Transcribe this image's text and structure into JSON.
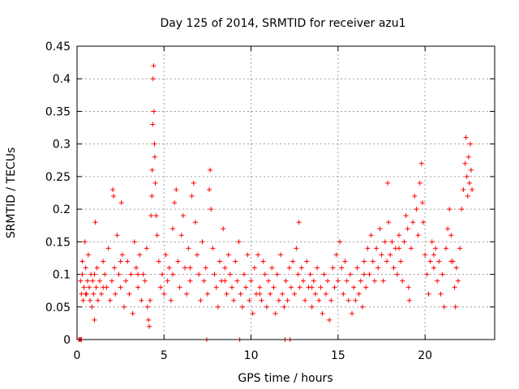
{
  "chart_data": {
    "type": "scatter",
    "title": "Day 125 of 2014, SRMTID for receiver azu1",
    "xlabel": "GPS time / hours",
    "ylabel": "SRMTID / TECUs",
    "xlim": [
      0,
      24
    ],
    "ylim": [
      0,
      0.45
    ],
    "xticks": [
      0,
      5,
      10,
      15,
      20
    ],
    "xtick_labels": [
      "0",
      "5",
      "10",
      "15",
      "20"
    ],
    "yticks": [
      0,
      0.05,
      0.1,
      0.15,
      0.2,
      0.25,
      0.3,
      0.35,
      0.4,
      0.45
    ],
    "ytick_labels": [
      "0",
      "0.05",
      "0.1",
      "0.15",
      "0.2",
      "0.25",
      "0.3",
      "0.35",
      "0.4",
      "0.45"
    ],
    "grid": true,
    "marker": "+",
    "color": "#ff0000",
    "series": [
      {
        "name": "SRMTID",
        "points": [
          [
            0.1,
            0.0
          ],
          [
            0.15,
            0.0
          ],
          [
            0.2,
            0.0
          ],
          [
            0.25,
            0.0
          ],
          [
            0.2,
            0.09
          ],
          [
            0.25,
            0.07
          ],
          [
            0.3,
            0.1
          ],
          [
            0.3,
            0.12
          ],
          [
            0.35,
            0.06
          ],
          [
            0.4,
            0.08
          ],
          [
            0.45,
            0.15
          ],
          [
            0.5,
            0.11
          ],
          [
            0.55,
            0.07
          ],
          [
            0.6,
            0.09
          ],
          [
            0.65,
            0.13
          ],
          [
            0.7,
            0.08
          ],
          [
            0.75,
            0.06
          ],
          [
            0.8,
            0.1
          ],
          [
            0.85,
            0.05
          ],
          [
            0.9,
            0.09
          ],
          [
            0.95,
            0.07
          ],
          [
            1.0,
            0.03
          ],
          [
            1.05,
            0.18
          ],
          [
            1.1,
            0.08
          ],
          [
            1.15,
            0.11
          ],
          [
            1.2,
            0.06
          ],
          [
            1.3,
            0.09
          ],
          [
            1.4,
            0.07
          ],
          [
            1.5,
            0.12
          ],
          [
            1.6,
            0.1
          ],
          [
            1.7,
            0.08
          ],
          [
            1.8,
            0.14
          ],
          [
            1.9,
            0.06
          ],
          [
            2.0,
            0.09
          ],
          [
            2.05,
            0.23
          ],
          [
            2.1,
            0.22
          ],
          [
            2.15,
            0.11
          ],
          [
            2.2,
            0.07
          ],
          [
            2.3,
            0.16
          ],
          [
            2.4,
            0.1
          ],
          [
            2.5,
            0.08
          ],
          [
            2.55,
            0.21
          ],
          [
            2.6,
            0.13
          ],
          [
            2.7,
            0.05
          ],
          [
            2.8,
            0.09
          ],
          [
            2.9,
            0.12
          ],
          [
            3.0,
            0.07
          ],
          [
            3.1,
            0.1
          ],
          [
            3.2,
            0.04
          ],
          [
            3.3,
            0.15
          ],
          [
            3.4,
            0.11
          ],
          [
            3.5,
            0.08
          ],
          [
            3.6,
            0.13
          ],
          [
            3.7,
            0.06
          ],
          [
            3.8,
            0.1
          ],
          [
            3.9,
            0.09
          ],
          [
            4.0,
            0.14
          ],
          [
            4.05,
            0.05
          ],
          [
            4.1,
            0.03
          ],
          [
            4.15,
            0.02
          ],
          [
            4.2,
            0.06
          ],
          [
            4.25,
            0.19
          ],
          [
            4.3,
            0.22
          ],
          [
            4.32,
            0.26
          ],
          [
            4.35,
            0.33
          ],
          [
            4.37,
            0.4
          ],
          [
            4.4,
            0.42
          ],
          [
            4.42,
            0.35
          ],
          [
            4.45,
            0.3
          ],
          [
            4.47,
            0.28
          ],
          [
            4.5,
            0.24
          ],
          [
            4.55,
            0.19
          ],
          [
            4.6,
            0.16
          ],
          [
            4.7,
            0.12
          ],
          [
            4.8,
            0.08
          ],
          [
            4.9,
            0.1
          ],
          [
            5.0,
            0.07
          ],
          [
            5.1,
            0.13
          ],
          [
            5.2,
            0.09
          ],
          [
            5.3,
            0.11
          ],
          [
            5.4,
            0.06
          ],
          [
            5.5,
            0.17
          ],
          [
            5.6,
            0.21
          ],
          [
            5.7,
            0.23
          ],
          [
            5.8,
            0.12
          ],
          [
            5.9,
            0.08
          ],
          [
            6.0,
            0.16
          ],
          [
            6.1,
            0.19
          ],
          [
            6.2,
            0.11
          ],
          [
            6.3,
            0.07
          ],
          [
            6.4,
            0.14
          ],
          [
            6.5,
            0.09
          ],
          [
            6.6,
            0.22
          ],
          [
            6.7,
            0.24
          ],
          [
            6.8,
            0.18
          ],
          [
            6.9,
            0.13
          ],
          [
            7.0,
            0.1
          ],
          [
            7.1,
            0.06
          ],
          [
            7.2,
            0.15
          ],
          [
            7.3,
            0.09
          ],
          [
            7.4,
            0.11
          ],
          [
            7.45,
            0.0
          ],
          [
            7.5,
            0.07
          ],
          [
            7.6,
            0.23
          ],
          [
            7.65,
            0.26
          ],
          [
            7.7,
            0.2
          ],
          [
            7.8,
            0.14
          ],
          [
            7.9,
            0.1
          ],
          [
            8.0,
            0.08
          ],
          [
            8.1,
            0.05
          ],
          [
            8.2,
            0.12
          ],
          [
            8.3,
            0.09
          ],
          [
            8.4,
            0.17
          ],
          [
            8.5,
            0.11
          ],
          [
            8.6,
            0.07
          ],
          [
            8.7,
            0.13
          ],
          [
            8.8,
            0.1
          ],
          [
            8.9,
            0.08
          ],
          [
            9.0,
            0.06
          ],
          [
            9.1,
            0.12
          ],
          [
            9.2,
            0.09
          ],
          [
            9.3,
            0.15
          ],
          [
            9.35,
            0.0
          ],
          [
            9.4,
            0.07
          ],
          [
            9.5,
            0.05
          ],
          [
            9.6,
            0.1
          ],
          [
            9.7,
            0.08
          ],
          [
            9.8,
            0.13
          ],
          [
            9.9,
            0.06
          ],
          [
            10.0,
            0.09
          ],
          [
            10.1,
            0.04
          ],
          [
            10.2,
            0.11
          ],
          [
            10.3,
            0.07
          ],
          [
            10.4,
            0.13
          ],
          [
            10.5,
            0.08
          ],
          [
            10.6,
            0.06
          ],
          [
            10.7,
            0.12
          ],
          [
            10.8,
            0.1
          ],
          [
            10.9,
            0.05
          ],
          [
            11.0,
            0.09
          ],
          [
            11.1,
            0.07
          ],
          [
            11.2,
            0.11
          ],
          [
            11.3,
            0.08
          ],
          [
            11.4,
            0.04
          ],
          [
            11.5,
            0.1
          ],
          [
            11.6,
            0.06
          ],
          [
            11.7,
            0.13
          ],
          [
            11.8,
            0.07
          ],
          [
            11.9,
            0.05
          ],
          [
            11.95,
            0.0
          ],
          [
            12.0,
            0.09
          ],
          [
            12.1,
            0.06
          ],
          [
            12.2,
            0.11
          ],
          [
            12.25,
            0.0
          ],
          [
            12.3,
            0.08
          ],
          [
            12.4,
            0.12
          ],
          [
            12.5,
            0.07
          ],
          [
            12.6,
            0.14
          ],
          [
            12.7,
            0.1
          ],
          [
            12.75,
            0.18
          ],
          [
            12.8,
            0.08
          ],
          [
            12.9,
            0.11
          ],
          [
            13.0,
            0.09
          ],
          [
            13.1,
            0.06
          ],
          [
            13.2,
            0.12
          ],
          [
            13.3,
            0.08
          ],
          [
            13.4,
            0.1
          ],
          [
            13.5,
            0.05
          ],
          [
            13.6,
            0.09
          ],
          [
            13.7,
            0.07
          ],
          [
            13.8,
            0.11
          ],
          [
            13.9,
            0.06
          ],
          [
            14.0,
            0.08
          ],
          [
            14.1,
            0.04
          ],
          [
            14.2,
            0.1
          ],
          [
            14.3,
            0.07
          ],
          [
            14.4,
            0.09
          ],
          [
            14.5,
            0.03
          ],
          [
            14.6,
            0.06
          ],
          [
            14.7,
            0.11
          ],
          [
            14.8,
            0.08
          ],
          [
            14.9,
            0.13
          ],
          [
            15.0,
            0.09
          ],
          [
            15.1,
            0.15
          ],
          [
            15.2,
            0.11
          ],
          [
            15.3,
            0.07
          ],
          [
            15.4,
            0.12
          ],
          [
            15.5,
            0.09
          ],
          [
            15.6,
            0.06
          ],
          [
            15.7,
            0.1
          ],
          [
            15.8,
            0.04
          ],
          [
            15.9,
            0.08
          ],
          [
            16.0,
            0.06
          ],
          [
            16.1,
            0.11
          ],
          [
            16.2,
            0.07
          ],
          [
            16.3,
            0.09
          ],
          [
            16.4,
            0.05
          ],
          [
            16.5,
            0.12
          ],
          [
            16.6,
            0.08
          ],
          [
            16.7,
            0.14
          ],
          [
            16.8,
            0.1
          ],
          [
            16.9,
            0.16
          ],
          [
            17.0,
            0.12
          ],
          [
            17.1,
            0.09
          ],
          [
            17.2,
            0.14
          ],
          [
            17.3,
            0.11
          ],
          [
            17.4,
            0.17
          ],
          [
            17.5,
            0.13
          ],
          [
            17.6,
            0.09
          ],
          [
            17.7,
            0.15
          ],
          [
            17.8,
            0.12
          ],
          [
            17.85,
            0.24
          ],
          [
            17.9,
            0.18
          ],
          [
            18.0,
            0.13
          ],
          [
            18.1,
            0.15
          ],
          [
            18.2,
            0.11
          ],
          [
            18.3,
            0.14
          ],
          [
            18.4,
            0.1
          ],
          [
            18.5,
            0.16
          ],
          [
            18.6,
            0.12
          ],
          [
            18.7,
            0.09
          ],
          [
            18.8,
            0.15
          ],
          [
            18.9,
            0.19
          ],
          [
            19.0,
            0.17
          ],
          [
            19.05,
            0.08
          ],
          [
            19.1,
            0.06
          ],
          [
            19.2,
            0.14
          ],
          [
            19.3,
            0.18
          ],
          [
            19.4,
            0.22
          ],
          [
            19.5,
            0.2
          ],
          [
            19.6,
            0.16
          ],
          [
            19.7,
            0.24
          ],
          [
            19.8,
            0.27
          ],
          [
            19.85,
            0.21
          ],
          [
            19.9,
            0.18
          ],
          [
            20.0,
            0.13
          ],
          [
            20.1,
            0.1
          ],
          [
            20.2,
            0.07
          ],
          [
            20.3,
            0.12
          ],
          [
            20.4,
            0.15
          ],
          [
            20.5,
            0.11
          ],
          [
            20.6,
            0.14
          ],
          [
            20.7,
            0.09
          ],
          [
            20.8,
            0.12
          ],
          [
            20.9,
            0.07
          ],
          [
            21.0,
            0.1
          ],
          [
            21.1,
            0.05
          ],
          [
            21.2,
            0.14
          ],
          [
            21.3,
            0.17
          ],
          [
            21.4,
            0.2
          ],
          [
            21.5,
            0.16
          ],
          [
            21.6,
            0.12
          ],
          [
            21.7,
            0.08
          ],
          [
            21.75,
            0.05
          ],
          [
            21.8,
            0.11
          ],
          [
            21.9,
            0.09
          ],
          [
            22.0,
            0.14
          ],
          [
            22.1,
            0.2
          ],
          [
            22.2,
            0.23
          ],
          [
            22.3,
            0.27
          ],
          [
            22.35,
            0.31
          ],
          [
            22.4,
            0.25
          ],
          [
            22.45,
            0.22
          ],
          [
            22.5,
            0.28
          ],
          [
            22.55,
            0.24
          ],
          [
            22.6,
            0.3
          ],
          [
            22.65,
            0.26
          ],
          [
            22.7,
            0.23
          ],
          [
            0.5,
            0.07
          ],
          [
            1.0,
            0.1
          ],
          [
            1.5,
            0.08
          ],
          [
            2.5,
            0.12
          ],
          [
            3.5,
            0.1
          ],
          [
            5.5,
            0.1
          ],
          [
            6.5,
            0.11
          ],
          [
            8.5,
            0.09
          ],
          [
            10.5,
            0.07
          ],
          [
            13.5,
            0.08
          ],
          [
            16.5,
            0.1
          ],
          [
            18.5,
            0.14
          ],
          [
            20.5,
            0.13
          ],
          [
            21.5,
            0.12
          ]
        ]
      }
    ]
  }
}
